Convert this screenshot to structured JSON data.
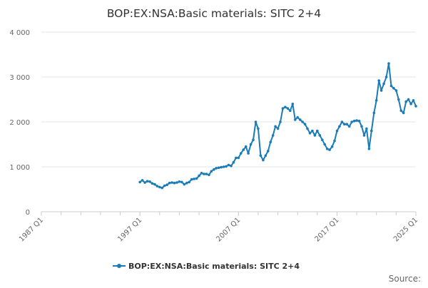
{
  "chart_data": {
    "type": "line",
    "title": "BOP:EX:NSA:Basic materials: SITC 2+4",
    "xlabel": "",
    "ylabel": "",
    "x_tick_labels": [
      "1987 Q1",
      "1997 Q1",
      "2007 Q1",
      "2017 Q1",
      "2025 Q1"
    ],
    "x_tick_years": [
      1987,
      1997,
      2007,
      2017,
      2025
    ],
    "xlim": [
      1987,
      2025
    ],
    "y_ticks": [
      0,
      1000,
      2000,
      3000,
      4000
    ],
    "y_tick_labels": [
      "0",
      "1 000",
      "2 000",
      "3 000",
      "4 000"
    ],
    "ylim": [
      0,
      4000
    ],
    "grid": "horizontal",
    "legend_position": "bottom",
    "series": [
      {
        "name": "BOP:EX:NSA:Basic materials: SITC 2+4",
        "color": "#1a7bb9",
        "x": [
          1997.0,
          1997.25,
          1997.5,
          1997.75,
          1998.0,
          1998.25,
          1998.5,
          1998.75,
          1999.0,
          1999.25,
          1999.5,
          1999.75,
          2000.0,
          2000.25,
          2000.5,
          2000.75,
          2001.0,
          2001.25,
          2001.5,
          2001.75,
          2002.0,
          2002.25,
          2002.5,
          2002.75,
          2003.0,
          2003.25,
          2003.5,
          2003.75,
          2004.0,
          2004.25,
          2004.5,
          2004.75,
          2005.0,
          2005.25,
          2005.5,
          2005.75,
          2006.0,
          2006.25,
          2006.5,
          2006.75,
          2007.0,
          2007.25,
          2007.5,
          2007.75,
          2008.0,
          2008.25,
          2008.5,
          2008.75,
          2009.0,
          2009.25,
          2009.5,
          2009.75,
          2010.0,
          2010.25,
          2010.5,
          2010.75,
          2011.0,
          2011.25,
          2011.5,
          2011.75,
          2012.0,
          2012.25,
          2012.5,
          2012.75,
          2013.0,
          2013.25,
          2013.5,
          2013.75,
          2014.0,
          2014.25,
          2014.5,
          2014.75,
          2015.0,
          2015.25,
          2015.5,
          2015.75,
          2016.0,
          2016.25,
          2016.5,
          2016.75,
          2017.0,
          2017.25,
          2017.5,
          2017.75,
          2018.0,
          2018.25,
          2018.5,
          2018.75,
          2019.0,
          2019.25,
          2019.5,
          2019.75,
          2020.0,
          2020.25,
          2020.5,
          2020.75,
          2021.0,
          2021.25,
          2021.5,
          2021.75,
          2022.0,
          2022.25,
          2022.5,
          2022.75,
          2023.0,
          2023.25,
          2023.5,
          2023.75,
          2024.0,
          2024.25,
          2024.5,
          2024.75,
          2025.0
        ],
        "values": [
          660,
          700,
          650,
          680,
          670,
          630,
          610,
          570,
          550,
          530,
          580,
          600,
          640,
          650,
          640,
          650,
          670,
          660,
          610,
          640,
          660,
          720,
          730,
          740,
          800,
          860,
          840,
          840,
          820,
          900,
          940,
          970,
          980,
          990,
          1000,
          1010,
          1040,
          1020,
          1100,
          1200,
          1200,
          1300,
          1380,
          1450,
          1300,
          1500,
          1600,
          2000,
          1850,
          1250,
          1150,
          1250,
          1350,
          1550,
          1700,
          1900,
          1850,
          2000,
          2300,
          2330,
          2300,
          2250,
          2400,
          2050,
          2100,
          2050,
          2000,
          1950,
          1850,
          1750,
          1800,
          1700,
          1800,
          1700,
          1600,
          1500,
          1400,
          1380,
          1450,
          1580,
          1800,
          1900,
          2000,
          1950,
          1950,
          1900,
          2000,
          2020,
          2030,
          2020,
          1900,
          1700,
          1850,
          1400,
          1800,
          2200,
          2480,
          2920,
          2700,
          2850,
          3000,
          3300,
          2800,
          2750,
          2700,
          2500,
          2250,
          2200,
          2450,
          2500,
          2400,
          2480,
          2350
        ]
      }
    ]
  },
  "legend": {
    "label": "BOP:EX:NSA:Basic materials: SITC 2+4"
  },
  "source": {
    "label": "Source:"
  }
}
